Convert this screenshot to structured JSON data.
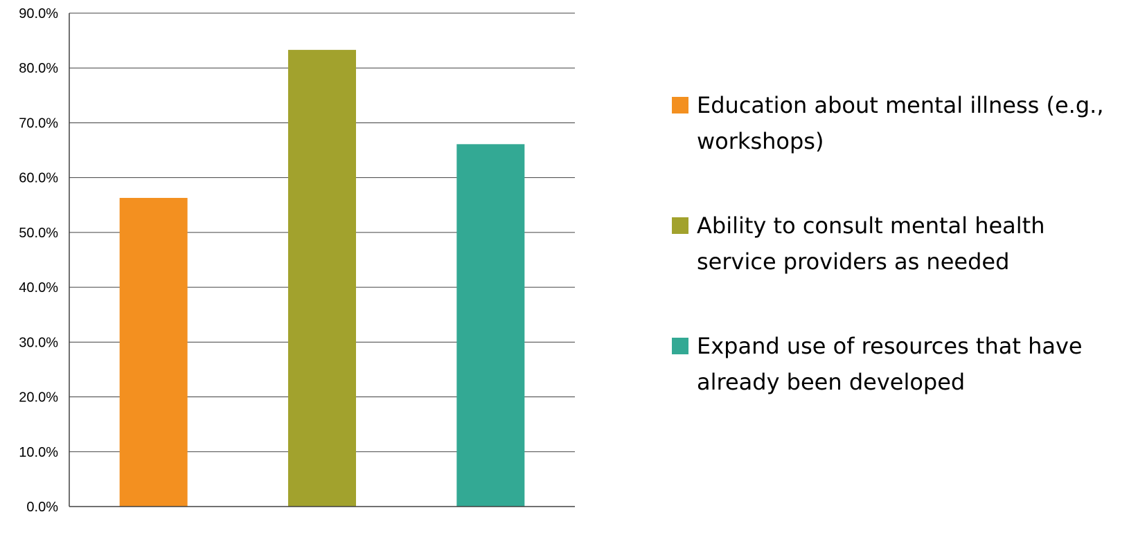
{
  "chart_data": {
    "type": "bar",
    "title": "",
    "xlabel": "",
    "ylabel": "",
    "ylim": [
      0,
      90
    ],
    "ytick_step": 10,
    "ytick_format": "percent_1dp",
    "grid": true,
    "legend_position": "right",
    "series": [
      {
        "name": "Education about mental illness (e.g., workshops)",
        "value": 56.3,
        "color": "#F39020"
      },
      {
        "name": "Ability to consult mental health service providers as needed",
        "value": 83.3,
        "color": "#A2A22D"
      },
      {
        "name": "Expand use of resources that have already been developed",
        "value": 66.1,
        "color": "#33A994"
      }
    ]
  }
}
